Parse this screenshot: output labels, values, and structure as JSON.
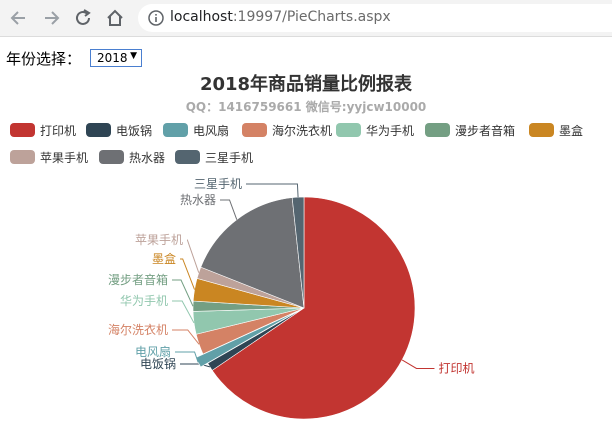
{
  "browser": {
    "url_host": "localhost",
    "url_rest": ":19997/PieCharts.aspx"
  },
  "form": {
    "year_label": "年份选择：",
    "year_selected": "2018"
  },
  "chart_data": {
    "type": "pie",
    "title": "2018年商品销量比例报表",
    "subtitle": "QQ：1416759661 微信号:yyjcw10000",
    "legend_position": "top-left",
    "slices": [
      {
        "label": "打印机",
        "value": 65.5,
        "color": "#c23531"
      },
      {
        "label": "电饭锅",
        "value": 1.2,
        "color": "#2f4554"
      },
      {
        "label": "电风扇",
        "value": 1.5,
        "color": "#61a0a8"
      },
      {
        "label": "海尔洗衣机",
        "value": 3.0,
        "color": "#d48265"
      },
      {
        "label": "华为手机",
        "value": 3.3,
        "color": "#91c7ae"
      },
      {
        "label": "漫步者音箱",
        "value": 1.5,
        "color": "#749f83"
      },
      {
        "label": "墨盒",
        "value": 3.3,
        "color": "#ca8622"
      },
      {
        "label": "苹果手机",
        "value": 1.7,
        "color": "#bda29a"
      },
      {
        "label": "热水器",
        "value": 17.3,
        "color": "#6e7074"
      },
      {
        "label": "三星手机",
        "value": 1.7,
        "color": "#546570"
      }
    ],
    "highlighted": "电风扇"
  }
}
